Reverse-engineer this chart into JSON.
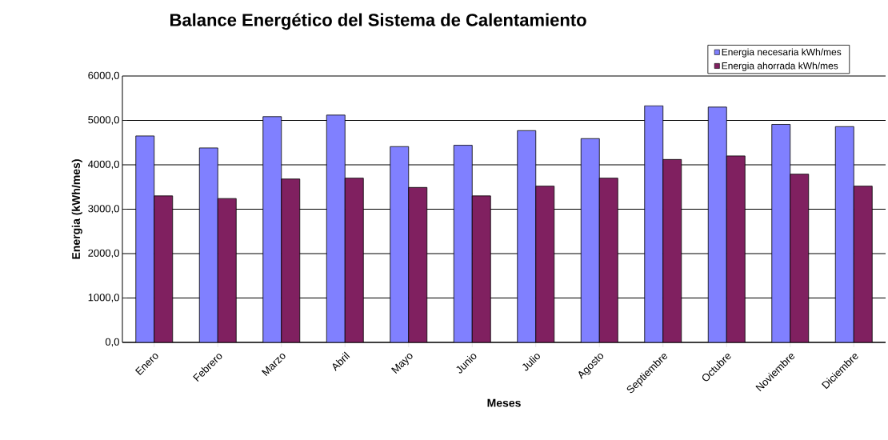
{
  "chart_data": {
    "type": "bar",
    "title": "Balance Energético del Sistema de Calentamiento",
    "xlabel": "Meses",
    "ylabel": "Energia (kWh/mes)",
    "categories": [
      "Enero",
      "Febrero",
      "Marzo",
      "Abril",
      "Mayo",
      "Junio",
      "Julio",
      "Agosto",
      "Septiembre",
      "Octubre",
      "Noviembre",
      "Diciembre"
    ],
    "series": [
      {
        "name": "Energia necesaria kWh/mes",
        "color": "#8080ff",
        "values": [
          4650,
          4380,
          5085,
          5120,
          4410,
          4440,
          4770,
          4590,
          5330,
          5300,
          4910,
          4860
        ]
      },
      {
        "name": "Energia ahorrada  kWh/mes",
        "color": "#802060",
        "values": [
          3300,
          3240,
          3680,
          3700,
          3490,
          3300,
          3520,
          3700,
          4120,
          4200,
          3790,
          3520
        ]
      }
    ],
    "ylim": [
      0,
      6000
    ],
    "yticks": [
      {
        "value": 0,
        "label": "0,0"
      },
      {
        "value": 1000,
        "label": "1000,0"
      },
      {
        "value": 2000,
        "label": "2000,0"
      },
      {
        "value": 3000,
        "label": "3000,0"
      },
      {
        "value": 4000,
        "label": "4000,0"
      },
      {
        "value": 5000,
        "label": "5000,0"
      },
      {
        "value": 6000,
        "label": "6000,0"
      }
    ],
    "grid": "y",
    "legend": "top right"
  }
}
